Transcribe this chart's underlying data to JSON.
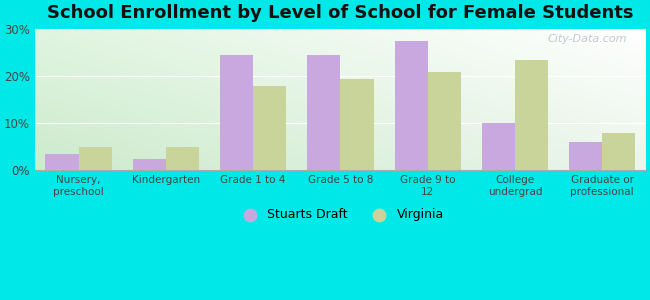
{
  "title": "School Enrollment by Level of School for Female Students",
  "categories": [
    "Nursery,\npreschool",
    "Kindergarten",
    "Grade 1 to 4",
    "Grade 5 to 8",
    "Grade 9 to\n12",
    "College\nundergrad",
    "Graduate or\nprofessional"
  ],
  "stuarts_draft": [
    3.5,
    2.5,
    24.5,
    24.5,
    27.5,
    10.0,
    6.0
  ],
  "virginia": [
    5.0,
    5.0,
    18.0,
    19.5,
    21.0,
    23.5,
    8.0
  ],
  "stuarts_draft_color": "#c9a8df",
  "virginia_color": "#c8d49a",
  "background_color": "#00e8e8",
  "ylim": [
    0,
    30
  ],
  "yticks": [
    0,
    10,
    20,
    30
  ],
  "ytick_labels": [
    "0%",
    "10%",
    "20%",
    "30%"
  ],
  "title_fontsize": 13,
  "legend_label_1": "Stuarts Draft",
  "legend_label_2": "Virginia",
  "bar_width": 0.38,
  "watermark": "City-Data.com",
  "grid_color": "#ccddcc",
  "bg_corner_tl": "#c8eed8",
  "bg_corner_br": "#f8fff8"
}
